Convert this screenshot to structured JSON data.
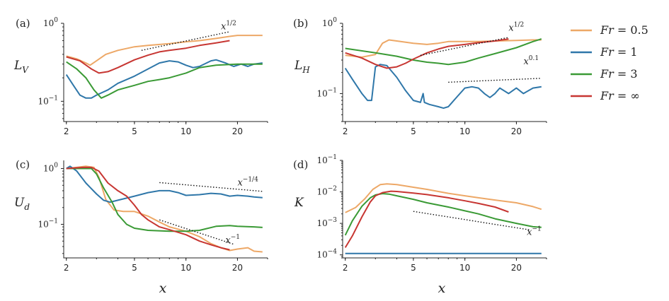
{
  "colors": {
    "Fr = 0.5": "#EDA867",
    "Fr = 1": "#2F77A9",
    "Fr = 3": "#3A9A35",
    "Fr = ∞": "#C73632",
    "reference": "#111111"
  },
  "legend": {
    "placement": "right",
    "entries": [
      {
        "lhs": "Fr",
        "rhs": " = 0.5",
        "key": "Fr = 0.5"
      },
      {
        "lhs": "Fr",
        "rhs": " = 1",
        "key": "Fr = 1"
      },
      {
        "lhs": "Fr",
        "rhs": " = 3",
        "key": "Fr = 3"
      },
      {
        "lhs": "Fr",
        "rhs": " = ∞",
        "key": "Fr = ∞"
      }
    ]
  },
  "chart_data": [
    {
      "type": "line",
      "panel": "(a)",
      "ylabel": {
        "base": "L",
        "sub": "V"
      },
      "xlabel": "",
      "x_scale": "log",
      "y_scale": "log",
      "xlim": [
        1.93,
        30
      ],
      "ylim": [
        0.055,
        1.0
      ],
      "x_ticks": [
        "2",
        "5",
        "10",
        "20"
      ],
      "y_ticks": [
        {
          "base": "10",
          "exp": "0"
        },
        {
          "base": "10",
          "exp": "−1"
        }
      ],
      "series": [
        {
          "name": "Fr = 0.5",
          "x": [
            2.0,
            2.3,
            2.6,
            2.75,
            3.0,
            3.4,
            4.0,
            5.0,
            6.0,
            8.0,
            10.0,
            12.0,
            15.0,
            18.0,
            20.0,
            25.0,
            28.0
          ],
          "y": [
            0.38,
            0.35,
            0.31,
            0.29,
            0.33,
            0.4,
            0.45,
            0.5,
            0.52,
            0.55,
            0.58,
            0.6,
            0.64,
            0.68,
            0.7,
            0.7,
            0.7
          ]
        },
        {
          "name": "Fr = 1",
          "x": [
            2.0,
            2.2,
            2.4,
            2.6,
            2.8,
            3.0,
            3.5,
            4.0,
            5.0,
            6.0,
            7.0,
            8.0,
            9.0,
            10.0,
            11.0,
            12.0,
            14.0,
            15.0,
            17.0,
            19.0,
            21.0,
            23.0,
            25.0,
            28.0
          ],
          "y": [
            0.22,
            0.16,
            0.12,
            0.11,
            0.11,
            0.12,
            0.14,
            0.17,
            0.21,
            0.26,
            0.31,
            0.33,
            0.32,
            0.29,
            0.27,
            0.28,
            0.33,
            0.34,
            0.31,
            0.28,
            0.3,
            0.28,
            0.3,
            0.31
          ]
        },
        {
          "name": "Fr = 3",
          "x": [
            2.0,
            2.3,
            2.6,
            2.9,
            3.2,
            3.5,
            4.0,
            5.0,
            6.0,
            7.0,
            8.0,
            10.0,
            12.0,
            15.0,
            20.0,
            25.0,
            28.0
          ],
          "y": [
            0.32,
            0.26,
            0.2,
            0.14,
            0.11,
            0.12,
            0.14,
            0.16,
            0.18,
            0.19,
            0.2,
            0.23,
            0.27,
            0.29,
            0.3,
            0.3,
            0.3
          ]
        },
        {
          "name": "Fr = ∞",
          "x": [
            2.0,
            2.4,
            2.8,
            3.1,
            3.5,
            4.0,
            5.0,
            6.0,
            7.0,
            8.0,
            10.0,
            12.0,
            15.0,
            18.0
          ],
          "y": [
            0.37,
            0.33,
            0.26,
            0.23,
            0.24,
            0.27,
            0.34,
            0.39,
            0.43,
            0.45,
            0.48,
            0.52,
            0.56,
            0.6
          ]
        }
      ],
      "reference_lines": [
        {
          "x": [
            5.5,
            18.0
          ],
          "y": [
            0.45,
            0.78
          ],
          "label_base": "x",
          "label_exp": "1/2",
          "label_at": [
            16.0,
            0.84
          ]
        }
      ]
    },
    {
      "type": "line",
      "panel": "(b)",
      "ylabel": {
        "base": "L",
        "sub": "H"
      },
      "xlabel": "",
      "x_scale": "log",
      "y_scale": "log",
      "xlim": [
        1.93,
        30
      ],
      "ylim": [
        0.04,
        1.0
      ],
      "x_ticks": [
        "2",
        "5",
        "10",
        "20"
      ],
      "y_ticks": [
        {
          "base": "10",
          "exp": "0"
        },
        {
          "base": "10",
          "exp": "−1"
        }
      ],
      "series": [
        {
          "name": "Fr = 0.5",
          "x": [
            2.0,
            2.5,
            3.0,
            3.3,
            3.6,
            4.0,
            5.0,
            6.0,
            7.0,
            8.0,
            10.0,
            12.0,
            15.0,
            20.0,
            25.0,
            28.0
          ],
          "y": [
            0.35,
            0.33,
            0.36,
            0.52,
            0.58,
            0.56,
            0.52,
            0.5,
            0.52,
            0.55,
            0.55,
            0.55,
            0.56,
            0.57,
            0.58,
            0.58
          ]
        },
        {
          "name": "Fr = 1",
          "x": [
            2.0,
            2.2,
            2.5,
            2.7,
            2.85,
            3.0,
            3.2,
            3.5,
            4.0,
            4.5,
            5.0,
            5.5,
            5.7,
            5.8,
            6.2,
            7.0,
            7.5,
            8.0,
            9.0,
            10.0,
            11.0,
            12.0,
            13.0,
            14.0,
            15.0,
            16.0,
            18.0,
            20.0,
            22.0,
            25.0,
            28.0
          ],
          "y": [
            0.23,
            0.16,
            0.1,
            0.08,
            0.08,
            0.24,
            0.26,
            0.25,
            0.17,
            0.11,
            0.08,
            0.075,
            0.1,
            0.075,
            0.07,
            0.065,
            0.062,
            0.065,
            0.09,
            0.12,
            0.125,
            0.12,
            0.1,
            0.088,
            0.1,
            0.12,
            0.1,
            0.12,
            0.1,
            0.12,
            0.125
          ]
        },
        {
          "name": "Fr = 3",
          "x": [
            2.0,
            3.0,
            4.0,
            5.0,
            6.0,
            7.0,
            8.0,
            10.0,
            12.0,
            15.0,
            20.0,
            25.0,
            28.0
          ],
          "y": [
            0.44,
            0.38,
            0.34,
            0.3,
            0.28,
            0.27,
            0.26,
            0.28,
            0.32,
            0.37,
            0.45,
            0.55,
            0.6
          ]
        },
        {
          "name": "Fr = ∞",
          "x": [
            2.0,
            2.5,
            3.0,
            3.5,
            4.0,
            4.5,
            5.0,
            6.0,
            7.0,
            8.0,
            10.0,
            12.0,
            15.0,
            18.0
          ],
          "y": [
            0.38,
            0.32,
            0.26,
            0.23,
            0.24,
            0.27,
            0.31,
            0.38,
            0.43,
            0.47,
            0.5,
            0.53,
            0.56,
            0.6
          ]
        }
      ],
      "reference_lines": [
        {
          "x": [
            5.5,
            18.0
          ],
          "y": [
            0.35,
            0.63
          ],
          "label_base": "x",
          "label_exp": "1/2",
          "label_at": [
            18.0,
            0.78
          ]
        },
        {
          "x": [
            8.0,
            28.0
          ],
          "y": [
            0.145,
            0.165
          ],
          "label_base": "x",
          "label_exp": "0.1",
          "label_at": [
            22.0,
            0.26
          ]
        }
      ]
    },
    {
      "type": "line",
      "panel": "(c)",
      "ylabel": {
        "base": "U",
        "sub": "d"
      },
      "xlabel": "x",
      "x_scale": "log",
      "y_scale": "log",
      "xlim": [
        1.93,
        30
      ],
      "ylim": [
        0.025,
        1.4
      ],
      "x_ticks": [
        "2",
        "5",
        "10",
        "20"
      ],
      "y_ticks": [
        {
          "base": "10",
          "exp": "0"
        },
        {
          "base": "10",
          "exp": "−1"
        }
      ],
      "series": [
        {
          "name": "Fr = 0.5",
          "x": [
            2.0,
            2.3,
            2.6,
            2.9,
            3.1,
            3.4,
            3.8,
            4.3,
            5.0,
            6.0,
            7.0,
            8.0,
            10.0,
            12.0,
            14.0,
            16.0,
            18.0,
            20.0,
            23.0,
            25.0,
            28.0
          ],
          "y": [
            1.0,
            1.05,
            1.1,
            1.05,
            0.7,
            0.28,
            0.18,
            0.17,
            0.17,
            0.14,
            0.11,
            0.09,
            0.075,
            0.06,
            0.045,
            0.038,
            0.034,
            0.036,
            0.038,
            0.033,
            0.032
          ]
        },
        {
          "name": "Fr = 1",
          "x": [
            2.0,
            2.1,
            2.3,
            2.6,
            3.0,
            3.3,
            3.6,
            4.0,
            5.0,
            6.0,
            7.0,
            8.0,
            9.0,
            10.0,
            12.0,
            14.0,
            16.0,
            18.0,
            20.0,
            23.0,
            25.0,
            28.0
          ],
          "y": [
            1.0,
            1.1,
            0.9,
            0.55,
            0.35,
            0.27,
            0.25,
            0.27,
            0.32,
            0.37,
            0.4,
            0.4,
            0.37,
            0.33,
            0.34,
            0.36,
            0.35,
            0.32,
            0.33,
            0.32,
            0.31,
            0.3
          ]
        },
        {
          "name": "Fr = 3",
          "x": [
            2.0,
            2.5,
            2.8,
            3.0,
            3.3,
            3.7,
            4.0,
            4.5,
            5.0,
            6.0,
            8.0,
            10.0,
            12.0,
            15.0,
            18.0,
            20.0,
            25.0,
            28.0
          ],
          "y": [
            1.0,
            1.0,
            1.0,
            0.8,
            0.45,
            0.25,
            0.15,
            0.1,
            0.085,
            0.078,
            0.075,
            0.075,
            0.078,
            0.092,
            0.095,
            0.092,
            0.09,
            0.088
          ]
        },
        {
          "name": "Fr = ∞",
          "x": [
            2.0,
            2.5,
            2.8,
            3.1,
            3.5,
            4.0,
            4.5,
            5.0,
            5.5,
            6.0,
            7.0,
            8.0,
            10.0,
            12.0,
            14.0,
            16.0,
            18.0
          ],
          "y": [
            1.0,
            1.05,
            1.05,
            0.9,
            0.55,
            0.4,
            0.32,
            0.22,
            0.15,
            0.12,
            0.09,
            0.08,
            0.065,
            0.05,
            0.043,
            0.038,
            0.035
          ]
        }
      ],
      "reference_lines": [
        {
          "x": [
            7.0,
            28.0
          ],
          "y": [
            0.56,
            0.39
          ],
          "label_base": "x",
          "label_exp": "−1/4",
          "label_at": [
            20.0,
            0.5
          ]
        },
        {
          "x": [
            7.0,
            19.0
          ],
          "y": [
            0.12,
            0.044
          ],
          "label_base": "x",
          "label_exp": "−1",
          "label_at": [
            17.0,
            0.046
          ]
        }
      ]
    },
    {
      "type": "line",
      "panel": "(d)",
      "ylabel": {
        "base": "K",
        "sub": ""
      },
      "xlabel": "x",
      "x_scale": "log",
      "y_scale": "log",
      "xlim": [
        1.93,
        30
      ],
      "ylim": [
        8e-05,
        0.1
      ],
      "x_ticks": [
        "2",
        "5",
        "10",
        "20"
      ],
      "y_ticks": [
        {
          "base": "10",
          "exp": "−1"
        },
        {
          "base": "10",
          "exp": "−2"
        },
        {
          "base": "10",
          "exp": "−3"
        },
        {
          "base": "10",
          "exp": "−4"
        }
      ],
      "series": [
        {
          "name": "Fr = 0.5",
          "x": [
            2.0,
            2.3,
            2.6,
            2.9,
            3.2,
            3.5,
            4.0,
            5.0,
            6.0,
            8.0,
            10.0,
            12.0,
            15.0,
            20.0,
            25.0,
            28.0
          ],
          "y": [
            0.0022,
            0.0032,
            0.006,
            0.012,
            0.017,
            0.018,
            0.017,
            0.014,
            0.012,
            0.009,
            0.0075,
            0.0065,
            0.0055,
            0.0045,
            0.0034,
            0.0028
          ]
        },
        {
          "name": "Fr = 1",
          "x": [
            2.0,
            28.0
          ],
          "y": [
            0.00011,
            0.00011
          ]
        },
        {
          "name": "Fr = 3",
          "x": [
            2.0,
            2.2,
            2.5,
            2.8,
            3.0,
            3.3,
            3.6,
            4.0,
            5.0,
            6.0,
            8.0,
            10.0,
            12.0,
            15.0,
            20.0,
            25.0,
            28.0
          ],
          "y": [
            0.00042,
            0.0012,
            0.0035,
            0.0065,
            0.008,
            0.0088,
            0.0085,
            0.0075,
            0.0058,
            0.0045,
            0.0033,
            0.0025,
            0.002,
            0.0014,
            0.001,
            0.00078,
            0.00075
          ]
        },
        {
          "name": "Fr = ∞",
          "x": [
            2.0,
            2.2,
            2.5,
            2.8,
            3.0,
            3.3,
            3.7,
            4.0,
            5.0,
            6.0,
            8.0,
            10.0,
            12.0,
            15.0,
            18.0
          ],
          "y": [
            0.00017,
            0.0004,
            0.0016,
            0.0048,
            0.0075,
            0.0095,
            0.0105,
            0.0103,
            0.0092,
            0.0082,
            0.0065,
            0.0052,
            0.0043,
            0.0033,
            0.0023
          ]
        }
      ],
      "reference_lines": [
        {
          "x": [
            5.0,
            24.0
          ],
          "y": [
            0.0024,
            0.00062
          ],
          "label_base": "x",
          "label_exp": "−1",
          "label_at": [
            23.0,
            0.00043
          ]
        }
      ]
    }
  ]
}
